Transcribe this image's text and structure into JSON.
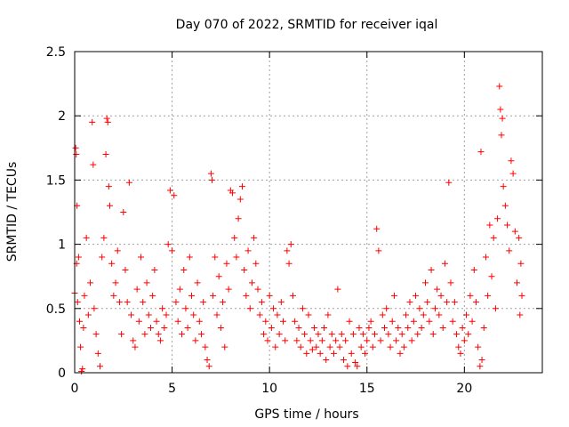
{
  "chart_data": {
    "type": "scatter",
    "title": "Day 070 of 2022, SRMTID for receiver iqal",
    "xlabel": "GPS time / hours",
    "ylabel": "SRMTID / TECUs",
    "xlim": [
      0,
      24
    ],
    "ylim": [
      0,
      2.5
    ],
    "x_ticks": [
      0,
      5,
      10,
      15,
      20
    ],
    "y_ticks": [
      0,
      0.5,
      1,
      1.5,
      2,
      2.5
    ],
    "x_tick_labels": [
      "0",
      "5",
      "10",
      "15",
      "20"
    ],
    "y_tick_labels": [
      "0",
      "0.5",
      "1",
      "1.5",
      "2",
      "2.5"
    ],
    "grid": true,
    "marker": "+",
    "color": "#ff0000",
    "series": [
      {
        "name": "SRMTID",
        "points": [
          [
            0.0,
            0.62
          ],
          [
            0.05,
            1.75
          ],
          [
            0.08,
            1.7
          ],
          [
            0.1,
            0.85
          ],
          [
            0.12,
            1.3
          ],
          [
            0.15,
            0.55
          ],
          [
            0.2,
            0.9
          ],
          [
            0.25,
            0.4
          ],
          [
            0.3,
            0.2
          ],
          [
            0.35,
            0.01
          ],
          [
            0.4,
            0.03
          ],
          [
            0.45,
            0.35
          ],
          [
            0.5,
            0.6
          ],
          [
            0.6,
            1.05
          ],
          [
            0.7,
            0.45
          ],
          [
            0.8,
            0.7
          ],
          [
            0.9,
            1.95
          ],
          [
            0.95,
            1.62
          ],
          [
            1.0,
            0.5
          ],
          [
            1.1,
            0.3
          ],
          [
            1.2,
            0.15
          ],
          [
            1.3,
            0.05
          ],
          [
            1.4,
            0.9
          ],
          [
            1.5,
            1.05
          ],
          [
            1.6,
            1.7
          ],
          [
            1.65,
            1.98
          ],
          [
            1.7,
            1.95
          ],
          [
            1.75,
            1.45
          ],
          [
            1.8,
            1.3
          ],
          [
            1.9,
            0.85
          ],
          [
            2.0,
            0.6
          ],
          [
            2.1,
            0.7
          ],
          [
            2.2,
            0.95
          ],
          [
            2.3,
            0.55
          ],
          [
            2.4,
            0.3
          ],
          [
            2.5,
            1.25
          ],
          [
            2.6,
            0.8
          ],
          [
            2.7,
            0.55
          ],
          [
            2.8,
            1.48
          ],
          [
            2.9,
            0.45
          ],
          [
            3.0,
            0.25
          ],
          [
            3.1,
            0.2
          ],
          [
            3.2,
            0.65
          ],
          [
            3.3,
            0.4
          ],
          [
            3.4,
            0.9
          ],
          [
            3.5,
            0.55
          ],
          [
            3.6,
            0.3
          ],
          [
            3.7,
            0.7
          ],
          [
            3.8,
            0.45
          ],
          [
            3.9,
            0.35
          ],
          [
            4.0,
            0.6
          ],
          [
            4.1,
            0.8
          ],
          [
            4.2,
            0.4
          ],
          [
            4.3,
            0.3
          ],
          [
            4.4,
            0.25
          ],
          [
            4.5,
            0.5
          ],
          [
            4.6,
            0.35
          ],
          [
            4.7,
            0.45
          ],
          [
            4.8,
            1.0
          ],
          [
            4.9,
            1.42
          ],
          [
            5.0,
            0.95
          ],
          [
            5.1,
            1.38
          ],
          [
            5.2,
            0.55
          ],
          [
            5.3,
            0.4
          ],
          [
            5.4,
            0.65
          ],
          [
            5.5,
            0.3
          ],
          [
            5.6,
            0.8
          ],
          [
            5.7,
            0.5
          ],
          [
            5.8,
            0.35
          ],
          [
            5.9,
            0.9
          ],
          [
            6.0,
            0.6
          ],
          [
            6.1,
            0.45
          ],
          [
            6.2,
            0.25
          ],
          [
            6.3,
            0.7
          ],
          [
            6.4,
            0.4
          ],
          [
            6.5,
            0.3
          ],
          [
            6.6,
            0.55
          ],
          [
            6.7,
            0.2
          ],
          [
            6.8,
            0.1
          ],
          [
            6.9,
            0.05
          ],
          [
            7.0,
            1.55
          ],
          [
            7.05,
            1.5
          ],
          [
            7.1,
            0.6
          ],
          [
            7.2,
            0.9
          ],
          [
            7.3,
            0.45
          ],
          [
            7.4,
            0.75
          ],
          [
            7.5,
            0.35
          ],
          [
            7.6,
            0.55
          ],
          [
            7.7,
            0.2
          ],
          [
            7.8,
            0.85
          ],
          [
            7.9,
            0.65
          ],
          [
            8.0,
            1.42
          ],
          [
            8.1,
            1.4
          ],
          [
            8.2,
            1.05
          ],
          [
            8.3,
            0.9
          ],
          [
            8.4,
            1.2
          ],
          [
            8.5,
            1.35
          ],
          [
            8.6,
            1.45
          ],
          [
            8.7,
            0.8
          ],
          [
            8.8,
            0.6
          ],
          [
            8.9,
            0.95
          ],
          [
            9.0,
            0.5
          ],
          [
            9.1,
            0.7
          ],
          [
            9.2,
            1.05
          ],
          [
            9.3,
            0.85
          ],
          [
            9.4,
            0.65
          ],
          [
            9.5,
            0.45
          ],
          [
            9.6,
            0.55
          ],
          [
            9.7,
            0.3
          ],
          [
            9.8,
            0.4
          ],
          [
            9.9,
            0.25
          ],
          [
            10.0,
            0.6
          ],
          [
            10.1,
            0.35
          ],
          [
            10.2,
            0.5
          ],
          [
            10.3,
            0.2
          ],
          [
            10.4,
            0.45
          ],
          [
            10.5,
            0.3
          ],
          [
            10.6,
            0.55
          ],
          [
            10.7,
            0.4
          ],
          [
            10.8,
            0.25
          ],
          [
            10.9,
            0.95
          ],
          [
            11.0,
            0.85
          ],
          [
            11.1,
            1.0
          ],
          [
            11.2,
            0.6
          ],
          [
            11.3,
            0.4
          ],
          [
            11.4,
            0.25
          ],
          [
            11.5,
            0.35
          ],
          [
            11.6,
            0.2
          ],
          [
            11.7,
            0.5
          ],
          [
            11.8,
            0.3
          ],
          [
            11.9,
            0.15
          ],
          [
            12.0,
            0.45
          ],
          [
            12.1,
            0.25
          ],
          [
            12.2,
            0.18
          ],
          [
            12.3,
            0.35
          ],
          [
            12.4,
            0.2
          ],
          [
            12.5,
            0.3
          ],
          [
            12.6,
            0.15
          ],
          [
            12.7,
            0.25
          ],
          [
            12.8,
            0.35
          ],
          [
            12.9,
            0.1
          ],
          [
            13.0,
            0.45
          ],
          [
            13.1,
            0.2
          ],
          [
            13.2,
            0.3
          ],
          [
            13.3,
            0.15
          ],
          [
            13.4,
            0.25
          ],
          [
            13.5,
            0.65
          ],
          [
            13.6,
            0.2
          ],
          [
            13.7,
            0.3
          ],
          [
            13.8,
            0.1
          ],
          [
            13.9,
            0.25
          ],
          [
            14.0,
            0.05
          ],
          [
            14.1,
            0.4
          ],
          [
            14.2,
            0.15
          ],
          [
            14.3,
            0.3
          ],
          [
            14.4,
            0.08
          ],
          [
            14.5,
            0.05
          ],
          [
            14.6,
            0.35
          ],
          [
            14.7,
            0.2
          ],
          [
            14.8,
            0.3
          ],
          [
            14.9,
            0.15
          ],
          [
            15.0,
            0.25
          ],
          [
            15.1,
            0.35
          ],
          [
            15.2,
            0.4
          ],
          [
            15.3,
            0.2
          ],
          [
            15.4,
            0.3
          ],
          [
            15.5,
            1.12
          ],
          [
            15.6,
            0.95
          ],
          [
            15.7,
            0.25
          ],
          [
            15.8,
            0.45
          ],
          [
            15.9,
            0.35
          ],
          [
            16.0,
            0.5
          ],
          [
            16.1,
            0.3
          ],
          [
            16.2,
            0.2
          ],
          [
            16.3,
            0.4
          ],
          [
            16.4,
            0.6
          ],
          [
            16.5,
            0.25
          ],
          [
            16.6,
            0.35
          ],
          [
            16.7,
            0.15
          ],
          [
            16.8,
            0.3
          ],
          [
            16.9,
            0.2
          ],
          [
            17.0,
            0.45
          ],
          [
            17.1,
            0.35
          ],
          [
            17.2,
            0.55
          ],
          [
            17.3,
            0.25
          ],
          [
            17.4,
            0.4
          ],
          [
            17.5,
            0.6
          ],
          [
            17.6,
            0.3
          ],
          [
            17.7,
            0.5
          ],
          [
            17.8,
            0.35
          ],
          [
            17.9,
            0.45
          ],
          [
            18.0,
            0.7
          ],
          [
            18.1,
            0.55
          ],
          [
            18.2,
            0.4
          ],
          [
            18.3,
            0.8
          ],
          [
            18.4,
            0.3
          ],
          [
            18.5,
            0.5
          ],
          [
            18.6,
            0.65
          ],
          [
            18.7,
            0.45
          ],
          [
            18.8,
            0.6
          ],
          [
            18.9,
            0.35
          ],
          [
            19.0,
            0.85
          ],
          [
            19.1,
            0.55
          ],
          [
            19.2,
            1.48
          ],
          [
            19.3,
            0.7
          ],
          [
            19.4,
            0.4
          ],
          [
            19.5,
            0.55
          ],
          [
            19.6,
            0.3
          ],
          [
            19.7,
            0.2
          ],
          [
            19.8,
            0.15
          ],
          [
            19.9,
            0.35
          ],
          [
            20.0,
            0.25
          ],
          [
            20.1,
            0.45
          ],
          [
            20.2,
            0.3
          ],
          [
            20.3,
            0.6
          ],
          [
            20.4,
            0.4
          ],
          [
            20.5,
            0.8
          ],
          [
            20.6,
            0.55
          ],
          [
            20.7,
            0.2
          ],
          [
            20.8,
            0.05
          ],
          [
            20.85,
            1.72
          ],
          [
            20.9,
            0.1
          ],
          [
            21.0,
            0.35
          ],
          [
            21.1,
            0.9
          ],
          [
            21.2,
            0.6
          ],
          [
            21.3,
            1.15
          ],
          [
            21.4,
            0.75
          ],
          [
            21.5,
            1.05
          ],
          [
            21.6,
            0.5
          ],
          [
            21.7,
            1.2
          ],
          [
            21.8,
            2.23
          ],
          [
            21.85,
            2.05
          ],
          [
            21.9,
            1.85
          ],
          [
            21.95,
            1.98
          ],
          [
            22.0,
            1.45
          ],
          [
            22.1,
            1.3
          ],
          [
            22.2,
            1.15
          ],
          [
            22.3,
            0.95
          ],
          [
            22.4,
            1.65
          ],
          [
            22.5,
            1.55
          ],
          [
            22.6,
            1.1
          ],
          [
            22.7,
            0.7
          ],
          [
            22.8,
            1.05
          ],
          [
            22.85,
            0.45
          ],
          [
            22.9,
            0.85
          ],
          [
            22.95,
            0.6
          ]
        ]
      }
    ]
  }
}
